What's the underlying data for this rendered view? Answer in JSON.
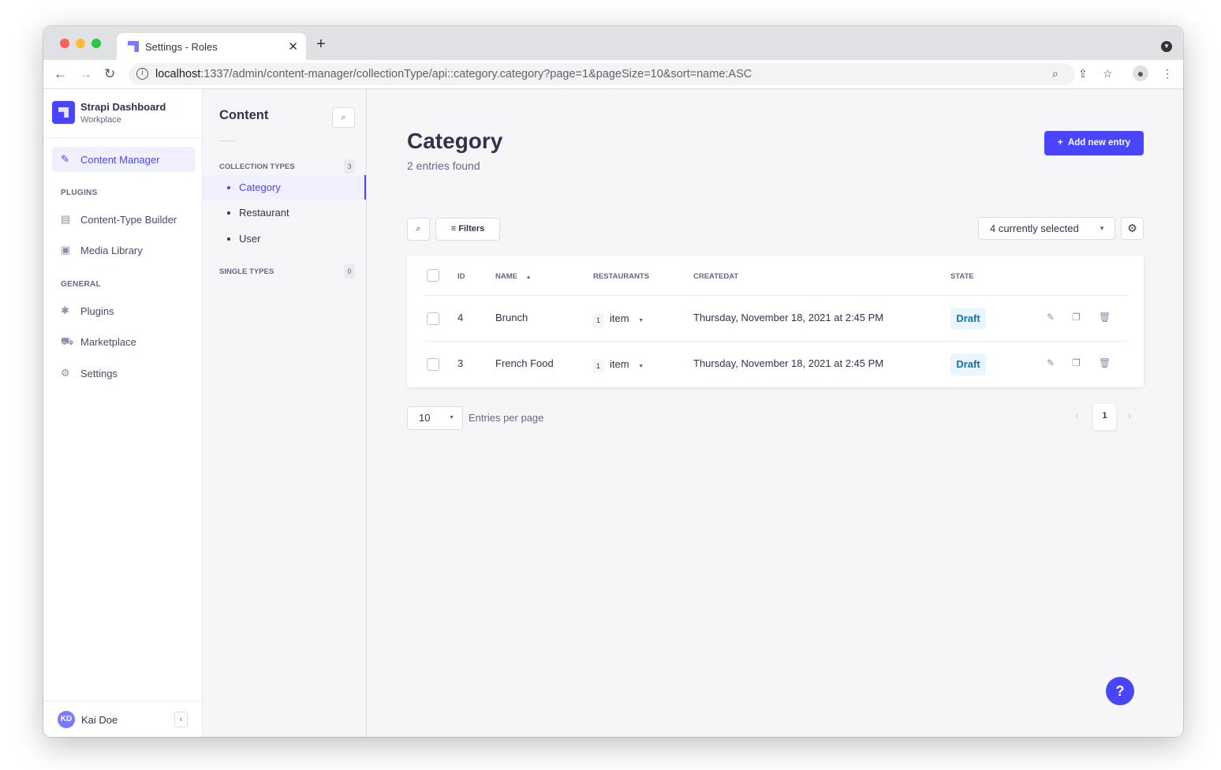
{
  "browser": {
    "tab_title": "Settings - Roles",
    "url_host": "localhost",
    "url_rest": ":1337/admin/content-manager/collectionType/api::category.category?page=1&pageSize=10&sort=name:ASC"
  },
  "sidebar": {
    "brand": "Strapi Dashboard",
    "workspace": "Workplace",
    "items": [
      {
        "label": "Content Manager",
        "icon": "feather-icon"
      }
    ],
    "plugins_label": "PLUGINS",
    "plugins": [
      {
        "label": "Content-Type Builder",
        "icon": "layout-icon"
      },
      {
        "label": "Media Library",
        "icon": "image-icon"
      }
    ],
    "general_label": "GENERAL",
    "general": [
      {
        "label": "Plugins",
        "icon": "puzzle-icon"
      },
      {
        "label": "Marketplace",
        "icon": "cart-icon"
      },
      {
        "label": "Settings",
        "icon": "gear-icon"
      }
    ],
    "user": {
      "initials": "KD",
      "name": "Kai Doe"
    }
  },
  "subnav": {
    "title": "Content",
    "collection_label": "COLLECTION TYPES",
    "collection_count": "3",
    "collection_types": [
      "Category",
      "Restaurant",
      "User"
    ],
    "single_label": "SINGLE TYPES",
    "single_count": "0"
  },
  "main": {
    "title": "Category",
    "subtitle": "2 entries found",
    "add_label": "Add new entry",
    "filters_label": "Filters",
    "columns_select": "4 currently selected",
    "columns": [
      "ID",
      "NAME",
      "RESTAURANTS",
      "CREATEDAT",
      "STATE"
    ],
    "rows": [
      {
        "id": "4",
        "name": "Brunch",
        "restaurants_count": "1",
        "restaurants_label": "item",
        "created": "Thursday, November 18, 2021 at 2:45 PM",
        "state": "Draft"
      },
      {
        "id": "3",
        "name": "French Food",
        "restaurants_count": "1",
        "restaurants_label": "item",
        "created": "Thursday, November 18, 2021 at 2:45 PM",
        "state": "Draft"
      }
    ],
    "page_size": "10",
    "entries_per_page": "Entries per page",
    "current_page": "1"
  },
  "help": "?",
  "colors": {
    "primary": "#4945ff",
    "draft": "#0c75af"
  }
}
